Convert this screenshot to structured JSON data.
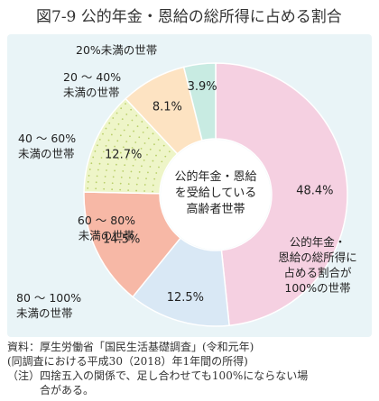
{
  "figure": {
    "title": "図7-9 公的年金・恩給の総所得に占める割合"
  },
  "chart_data": {
    "type": "pie",
    "center_label": [
      "公的年金・恩給",
      "を受給している",
      "高齢者世帯"
    ],
    "slices": [
      {
        "label": [
          "公的年金・",
          "恩給の総所得に",
          "占める割合が",
          "100%の世帯"
        ],
        "value": 48.4,
        "value_label": "48.4%",
        "color": "#f5d0e1"
      },
      {
        "label": [
          "80 ～ 100%",
          "未満の世帯"
        ],
        "value": 12.5,
        "value_label": "12.5%",
        "color": "#d9e8f5"
      },
      {
        "label": [
          "60 ～ 80%",
          "未満の世帯"
        ],
        "value": 14.5,
        "value_label": "14.5%",
        "color": "#f7b8a6"
      },
      {
        "label": [
          "40 ～ 60%",
          "未満の世帯"
        ],
        "value": 12.7,
        "value_label": "12.7%",
        "color": "#eef5c8"
      },
      {
        "label": [
          "20 ～ 40%",
          "未満の世帯"
        ],
        "value": 8.1,
        "value_label": "8.1%",
        "color": "#fde3c2"
      },
      {
        "label": [
          "20%未満の世帯"
        ],
        "value": 3.9,
        "value_label": "3.9%",
        "color": "#c8ebe2"
      }
    ]
  },
  "notes": [
    "資料：厚生労働省「国民生活基礎調査」(令和元年)",
    "(同調査における平成30（2018）年1年間の所得)",
    "（注）四捨五入の関係で、足し合わせても100%にならない場",
    "　　　合がある。"
  ]
}
